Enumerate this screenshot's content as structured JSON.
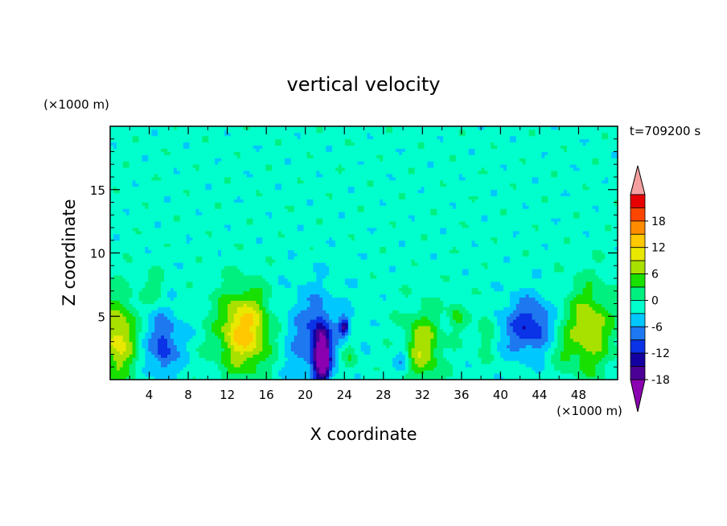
{
  "chart_data": {
    "type": "heatmap",
    "title": "vertical velocity",
    "xlabel": "X coordinate",
    "ylabel": "Z coordinate",
    "x_unit": "(×1000 m)",
    "y_unit": "(×1000 m)",
    "time_label": "t=709200 s",
    "xlim": [
      0,
      52
    ],
    "ylim": [
      0,
      20
    ],
    "x_ticks": [
      4,
      8,
      12,
      16,
      20,
      24,
      28,
      32,
      36,
      40,
      44,
      48
    ],
    "y_ticks": [
      5,
      10,
      15
    ],
    "grid": false,
    "background_value": -1.5,
    "colorbar": {
      "placement": "right",
      "min": -21,
      "step": 3,
      "levels": [
        -21,
        -18,
        -15,
        -12,
        -9,
        -6,
        -3,
        0,
        3,
        6,
        9,
        12,
        15,
        18,
        21
      ],
      "tick_labels": [
        "18",
        "12",
        "6",
        "0",
        "-6",
        "-12",
        "-18"
      ],
      "tick_values": [
        18,
        12,
        6,
        0,
        -6,
        -12,
        -18
      ],
      "colors": [
        "#8b00b0",
        "#4b0096",
        "#1400a0",
        "#0a32e6",
        "#1e78f0",
        "#00c8ff",
        "#00ffcc",
        "#00f080",
        "#18e000",
        "#a8e000",
        "#e8e800",
        "#ffc800",
        "#ff8c00",
        "#ff4600",
        "#e60000",
        "#f5a0a0"
      ]
    },
    "features": [
      {
        "x": 0.8,
        "z": 3.2,
        "sx": 1.3,
        "sz": 2.2,
        "w": 12
      },
      {
        "x": 4.5,
        "z": 7.2,
        "sx": 0.8,
        "sz": 0.9,
        "w": 4
      },
      {
        "x": 5.5,
        "z": 3.0,
        "sx": 1.4,
        "sz": 1.8,
        "w": -7
      },
      {
        "x": 5.5,
        "z": 2.2,
        "sx": 0.4,
        "sz": 1.0,
        "w": -4
      },
      {
        "x": 13.8,
        "z": 3.5,
        "sx": 1.9,
        "sz": 2.2,
        "w": 12
      },
      {
        "x": 13.5,
        "z": 5.0,
        "sx": 1.6,
        "sz": 1.8,
        "w": 4
      },
      {
        "x": 21.0,
        "z": 3.4,
        "sx": 2.2,
        "sz": 2.6,
        "w": -7
      },
      {
        "x": 21.6,
        "z": 2.0,
        "sx": 0.55,
        "sz": 1.6,
        "w": -16
      },
      {
        "x": 22.0,
        "z": 1.5,
        "sx": 0.35,
        "sz": 0.9,
        "w": -10
      },
      {
        "x": 24.0,
        "z": 4.2,
        "sx": 0.35,
        "sz": 0.45,
        "w": -12
      },
      {
        "x": 24.5,
        "z": 1.8,
        "sx": 0.6,
        "sz": 0.9,
        "w": 5
      },
      {
        "x": 30.0,
        "z": 1.6,
        "sx": 0.5,
        "sz": 0.8,
        "w": -6
      },
      {
        "x": 32.0,
        "z": 2.6,
        "sx": 1.3,
        "sz": 1.9,
        "w": 10
      },
      {
        "x": 35.5,
        "z": 5.0,
        "sx": 0.6,
        "sz": 0.9,
        "w": 5
      },
      {
        "x": 38.5,
        "z": 3.8,
        "sx": 0.6,
        "sz": 1.3,
        "w": 5
      },
      {
        "x": 43.0,
        "z": 4.2,
        "sx": 2.0,
        "sz": 1.6,
        "w": -10
      },
      {
        "x": 49.0,
        "z": 4.0,
        "sx": 1.8,
        "sz": 2.4,
        "w": 10
      },
      {
        "x": 46.0,
        "z": 3.0,
        "sx": 1.0,
        "sz": 1.5,
        "w": 3
      }
    ]
  }
}
